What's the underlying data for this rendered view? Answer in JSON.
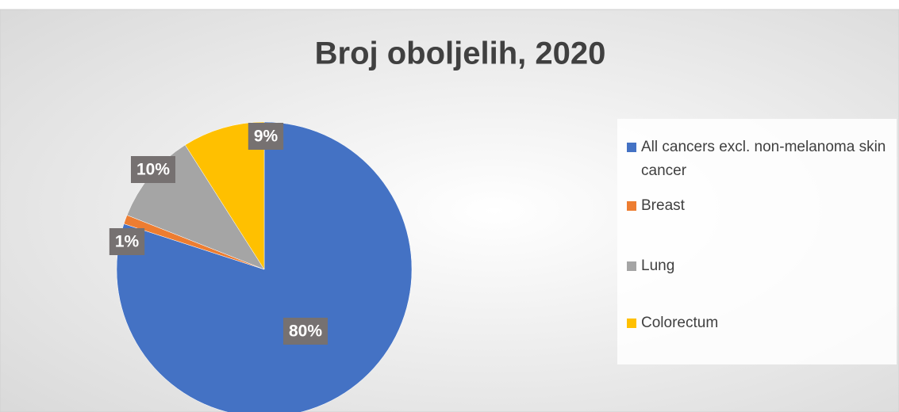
{
  "chart_data": {
    "type": "pie",
    "title": "Broj oboljelih, 2020",
    "categories": [
      "All cancers excl. non-melanoma skin cancer",
      "Breast",
      "Lung",
      "Colorectum"
    ],
    "values": [
      80,
      1,
      10,
      9
    ],
    "value_labels": [
      "80%",
      "1%",
      "10%",
      "9%"
    ],
    "colors": [
      "#4472c4",
      "#ed7d31",
      "#a5a5a5",
      "#ffc000"
    ],
    "legend": "right"
  }
}
